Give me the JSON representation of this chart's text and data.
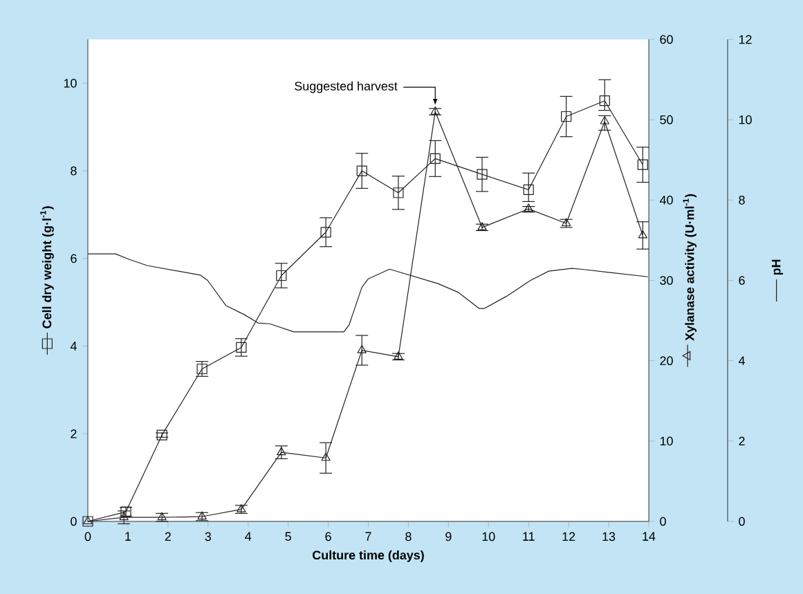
{
  "chart_data": {
    "type": "line",
    "xlabel": "Culture time (days)",
    "ylabel": "Cell dry weight (g·l$^{-1}$)",
    "y2label": "Xylanase activity (U·ml$^{-1}$)",
    "y3label": "pH",
    "xlim": [
      0,
      14
    ],
    "xticks": [
      0,
      1,
      2,
      3,
      4,
      5,
      6,
      7,
      8,
      9,
      10,
      11,
      12,
      13,
      14
    ],
    "ylim": [
      0,
      11
    ],
    "yticks": [
      0,
      2,
      4,
      6,
      8,
      10
    ],
    "y2lim": [
      0,
      60
    ],
    "y2ticks": [
      0,
      10,
      20,
      30,
      40,
      50,
      60
    ],
    "y3lim": [
      0,
      12
    ],
    "y3ticks": [
      0,
      2,
      4,
      6,
      8,
      10,
      12
    ],
    "annotations": [
      {
        "text": "Suggested harvest",
        "x": 8.67,
        "y": 9.5
      }
    ],
    "series": [
      {
        "color": "#231f20",
        "marker": "square",
        "x": [
          0,
          0.95,
          1.85,
          2.85,
          3.83,
          4.83,
          5.94,
          6.84,
          7.75,
          8.67,
          9.84,
          11.0,
          11.94,
          12.9,
          13.85
        ],
        "values": [
          0,
          0.22,
          1.97,
          3.48,
          3.97,
          5.61,
          6.6,
          8.0,
          7.5,
          8.28,
          7.92,
          7.57,
          9.24,
          9.6,
          8.14
        ],
        "errors": [
          null,
          0.1,
          0.05,
          0.17,
          0.2,
          0.28,
          0.33,
          0.4,
          0.38,
          0.41,
          0.39,
          [
            7.3,
            7.95
          ],
          0.46,
          [
            9.38,
            10.08
          ],
          0.4
        ]
      },
      {
        "axis": "y2",
        "color": "#231f20",
        "marker": "triangle",
        "x": [
          0,
          0.9,
          1.85,
          2.85,
          3.83,
          4.83,
          5.94,
          6.84,
          7.75,
          8.67,
          9.84,
          11.0,
          11.94,
          12.9,
          13.85
        ],
        "values": [
          0,
          0.5,
          0.5,
          0.6,
          1.5,
          8.6,
          7.9,
          21.3,
          20.5,
          51.0,
          36.6,
          38.9,
          37.1,
          49.8,
          35.6
        ],
        "errors": [
          null,
          0.8,
          0.5,
          0.5,
          0.5,
          0.8,
          1.9,
          1.85,
          0.4,
          0.4,
          0.4,
          [
            38.5,
            39.2
          ],
          0.5,
          [
            48.7,
            50.5
          ],
          1.7
        ]
      },
      {
        "axis": "y3",
        "color": "#231f20",
        "marker": "none",
        "x": [
          0,
          0.69,
          1.04,
          1.48,
          2.81,
          2.99,
          3.45,
          3.9,
          4.25,
          4.54,
          5.14,
          6.39,
          6.52,
          6.84,
          7.0,
          7.53,
          8.74,
          9.25,
          9.77,
          9.89,
          10.46,
          11.05,
          11.5,
          12.08,
          12.31,
          13.0,
          13.98
        ],
        "values": [
          6.66,
          6.66,
          6.52,
          6.37,
          6.13,
          6.0,
          5.37,
          5.15,
          4.94,
          4.92,
          4.72,
          4.72,
          4.89,
          5.83,
          6.04,
          6.28,
          5.92,
          5.7,
          5.3,
          5.3,
          5.61,
          6.0,
          6.23,
          6.3,
          6.28,
          6.2,
          6.09
        ]
      }
    ]
  }
}
